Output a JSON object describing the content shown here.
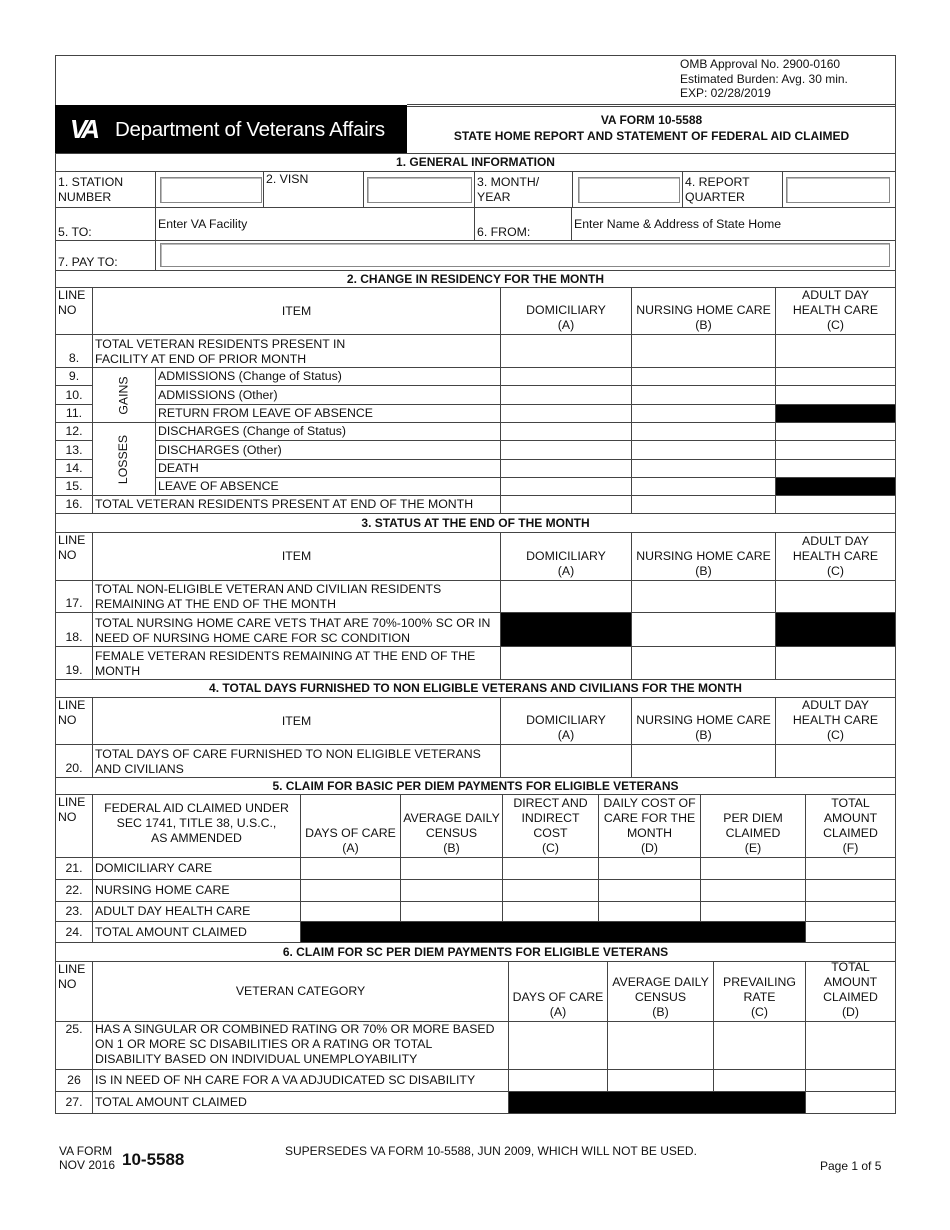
{
  "header": {
    "omb": [
      "OMB Approval No. 2900-0160",
      "Estimated Burden:  Avg. 30 min.",
      "EXP:  02/28/2019"
    ],
    "agency": "Department of Veterans Affairs",
    "logo_text": "VA",
    "form_no": "VA FORM 10-5588",
    "form_title": "STATE HOME REPORT AND STATEMENT OF FEDERAL AID CLAIMED"
  },
  "s1": {
    "title": "1.  GENERAL INFORMATION",
    "station_label": "1.  STATION\n      NUMBER",
    "visn_label": "2. VISN",
    "month_label": "3. MONTH/\n      YEAR",
    "quarter_label": "4.  REPORT\n      QUARTER",
    "to_label": "5.  TO:",
    "to_value": "Enter VA Facility",
    "from_label": "6.  FROM:",
    "from_value": "Enter Name & Address of State Home",
    "pay_label": "7.  PAY TO:"
  },
  "cols": {
    "line_no": "LINE\nNO",
    "item": "ITEM",
    "dom": "DOMICILIARY\n(A)",
    "nhc": "NURSING HOME CARE\n(B)",
    "adhc": "ADULT DAY\nHEALTH CARE\n(C)"
  },
  "s2": {
    "title": "2.  CHANGE IN RESIDENCY FOR THE MONTH",
    "gains": "GAINS",
    "losses": "LOSSES",
    "rows": [
      {
        "no": "8.",
        "item": "TOTAL VETERAN RESIDENTS PRESENT IN\nFACILITY AT END OF PRIOR MONTH"
      },
      {
        "no": "9.",
        "item": "ADMISSIONS (Change of Status)"
      },
      {
        "no": "10.",
        "item": "ADMISSIONS (Other)"
      },
      {
        "no": "11.",
        "item": "RETURN FROM LEAVE OF ABSENCE"
      },
      {
        "no": "12.",
        "item": "DISCHARGES (Change of Status)"
      },
      {
        "no": "13.",
        "item": "DISCHARGES (Other)"
      },
      {
        "no": "14.",
        "item": "DEATH"
      },
      {
        "no": "15.",
        "item": "LEAVE OF ABSENCE"
      },
      {
        "no": "16.",
        "item": "TOTAL VETERAN RESIDENTS PRESENT AT END OF THE MONTH"
      }
    ]
  },
  "s3": {
    "title": "3.  STATUS AT THE END OF THE MONTH",
    "rows": [
      {
        "no": "17.",
        "item": "TOTAL NON-ELIGIBLE VETERAN AND CIVILIAN RESIDENTS\nREMAINING AT THE END OF THE MONTH"
      },
      {
        "no": "18.",
        "item": "TOTAL NURSING HOME CARE VETS THAT ARE 70%-100% SC OR IN\nNEED OF NURSING HOME CARE FOR SC CONDITION"
      },
      {
        "no": "19.",
        "item": "FEMALE VETERAN RESIDENTS REMAINING AT THE END OF THE\nMONTH"
      }
    ]
  },
  "s4": {
    "title": "4.  TOTAL DAYS FURNISHED TO NON ELIGIBLE VETERANS AND CIVILIANS FOR THE MONTH",
    "rows": [
      {
        "no": "20.",
        "item": "TOTAL DAYS OF CARE FURNISHED TO NON ELIGIBLE VETERANS\nAND CIVILIANS"
      }
    ]
  },
  "s5": {
    "title": "5.  CLAIM FOR BASIC PER DIEM PAYMENTS FOR ELIGIBLE VETERANS",
    "cols": {
      "federal": "FEDERAL AID CLAIMED UNDER\nSEC 1741, TITLE 38, U.S.C.,\nAS AMMENDED",
      "a": "DAYS OF CARE\n(A)",
      "b": "AVERAGE DAILY\nCENSUS\n(B)",
      "c": "DIRECT AND\nINDIRECT\nCOST\n(C)",
      "d": "DAILY COST OF\nCARE FOR THE\nMONTH\n(D)",
      "e": "PER DIEM\nCLAIMED\n(E)",
      "f": "TOTAL\nAMOUNT\nCLAIMED\n(F)"
    },
    "rows": [
      {
        "no": "21.",
        "item": "DOMICILIARY CARE"
      },
      {
        "no": "22.",
        "item": "NURSING HOME CARE"
      },
      {
        "no": "23.",
        "item": "ADULT DAY HEALTH CARE"
      },
      {
        "no": "24.",
        "item": "TOTAL AMOUNT CLAIMED"
      }
    ]
  },
  "s6": {
    "title": "6.  CLAIM FOR SC PER DIEM PAYMENTS FOR ELIGIBLE VETERANS",
    "cols": {
      "category": "VETERAN CATEGORY",
      "a": "DAYS OF CARE\n(A)",
      "b": "AVERAGE DAILY\nCENSUS\n(B)",
      "c": "PREVAILING\nRATE\n(C)",
      "d": "TOTAL\nAMOUNT\nCLAIMED\n(D)"
    },
    "rows": [
      {
        "no": "25.",
        "item": "HAS A SINGULAR OR COMBINED RATING OR 70% OR MORE BASED\nON 1 OR MORE SC DISABILITIES OR A RATING OR TOTAL\nDISABILITY BASED ON INDIVIDUAL UNEMPLOYABILITY"
      },
      {
        "no": "26",
        "item": "IS IN NEED OF NH CARE FOR A VA ADJUDICATED SC DISABILITY"
      },
      {
        "no": "27.",
        "item": "TOTAL AMOUNT CLAIMED"
      }
    ]
  },
  "footer": {
    "va_form": "VA FORM",
    "date": "NOV 2016",
    "number": "10-5588",
    "supersedes": "SUPERSEDES VA FORM 10-5588, JUN 2009, WHICH WILL NOT BE USED.",
    "page": "Page 1 of 5"
  }
}
